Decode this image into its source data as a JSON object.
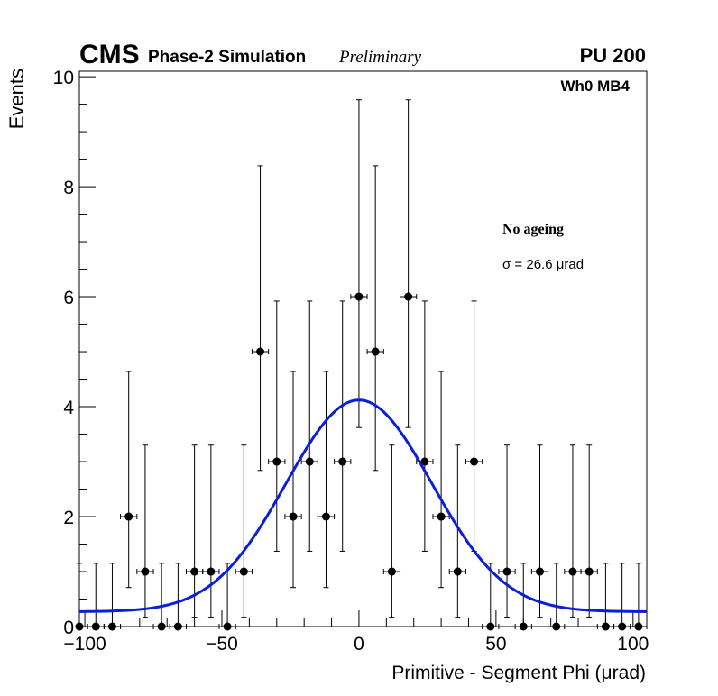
{
  "header": {
    "experiment": "CMS",
    "subtitle": "Phase-2 Simulation",
    "status": "Preliminary",
    "pileup": "PU 200"
  },
  "chart_data": {
    "type": "scatter",
    "title": "",
    "xlabel": "Primitive - Segment Phi (μrad)",
    "ylabel": "Events",
    "xlim": [
      -102,
      105
    ],
    "ylim": [
      0,
      10.1
    ],
    "x_ticks": [
      -100,
      -50,
      0,
      50,
      100
    ],
    "x_tick_labels": [
      "−100",
      "−50",
      "0",
      "50",
      "100"
    ],
    "y_ticks": [
      0,
      2,
      4,
      6,
      8,
      10
    ],
    "y_tick_labels": [
      "0",
      "2",
      "4",
      "6",
      "8",
      "10"
    ],
    "bin_width": 6,
    "region_label": "Wh0 MB4",
    "legend": {
      "label": "No ageing",
      "sigma_text": "σ = 26.6  μrad"
    },
    "series": [
      {
        "name": "Data",
        "x": [
          -102,
          -96,
          -90,
          -84,
          -78,
          -72,
          -66,
          -60,
          -54,
          -48,
          -42,
          -36,
          -30,
          -24,
          -18,
          -12,
          -6,
          0,
          6,
          12,
          18,
          24,
          30,
          36,
          42,
          48,
          54,
          60,
          66,
          72,
          78,
          84,
          90,
          96,
          102
        ],
        "y": [
          0,
          0,
          0,
          2,
          1,
          0,
          0,
          1,
          1,
          0,
          1,
          5,
          3,
          2,
          3,
          2,
          3,
          6,
          5,
          1,
          6,
          3,
          2,
          1,
          3,
          0,
          1,
          0,
          1,
          0,
          1,
          1,
          0,
          0,
          0
        ],
        "err_up": [
          1.15,
          1.15,
          1.15,
          2.64,
          2.3,
          1.15,
          1.15,
          2.3,
          2.3,
          1.15,
          2.3,
          3.38,
          2.92,
          2.64,
          2.92,
          2.64,
          2.92,
          3.58,
          3.38,
          2.3,
          3.58,
          2.92,
          2.64,
          2.3,
          2.92,
          1.15,
          2.3,
          1.15,
          2.3,
          1.15,
          2.3,
          2.3,
          1.15,
          1.15,
          1.15
        ],
        "err_down": [
          0,
          0,
          0,
          1.29,
          0.83,
          0,
          0,
          0.83,
          0.83,
          0,
          0.83,
          2.16,
          1.63,
          1.29,
          1.63,
          1.29,
          1.63,
          2.38,
          2.16,
          0.83,
          2.38,
          1.63,
          1.29,
          0.83,
          1.63,
          0,
          0.83,
          0,
          0.83,
          0,
          0.83,
          0.83,
          0,
          0,
          0
        ]
      }
    ],
    "fit": {
      "name": "Gaussian fit",
      "color": "#0b1fd8",
      "amplitude": 3.85,
      "mean": 0,
      "sigma": 26.6,
      "baseline": 0.27
    }
  }
}
